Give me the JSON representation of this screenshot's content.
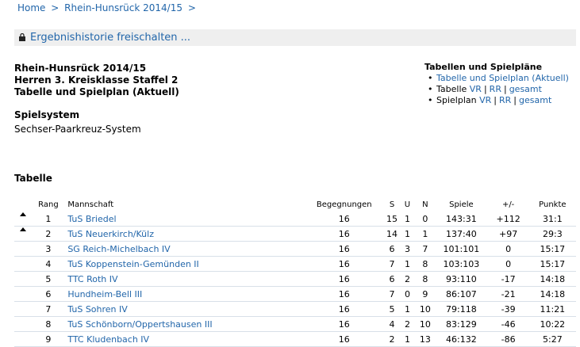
{
  "breadcrumb": {
    "home": "Home",
    "season": "Rhein-Hunsrück 2014/15",
    "sep": ">"
  },
  "unlock": {
    "label": "Ergebnishistorie freischalten ..."
  },
  "header": {
    "line1": "Rhein-Hunsrück 2014/15",
    "line2": "Herren 3. Kreisklasse Staffel 2",
    "line3": "Tabelle und Spielplan (Aktuell)"
  },
  "spielsystem": {
    "label": "Spielsystem",
    "value": "Sechser-Paarkreuz-System"
  },
  "sidebar": {
    "title": "Tabellen und Spielpläne",
    "item1": "Tabelle und Spielplan (Aktuell)",
    "tabelle_label": "Tabelle",
    "spielplan_label": "Spielplan",
    "vr": "VR",
    "rr": "RR",
    "gesamt": "gesamt",
    "pipe": "|"
  },
  "tabelle": {
    "heading": "Tabelle",
    "columns": {
      "rang": "Rang",
      "mannschaft": "Mannschaft",
      "begegnungen": "Begegnungen",
      "s": "S",
      "u": "U",
      "n": "N",
      "spiele": "Spiele",
      "diff": "+/-",
      "punkte": "Punkte"
    },
    "rows": [
      {
        "up": true,
        "rang": "1",
        "team": "TuS Briedel",
        "beg": "16",
        "s": "15",
        "u": "1",
        "n": "0",
        "spiele": "143:31",
        "diff": "+112",
        "punkte": "31:1"
      },
      {
        "up": true,
        "rang": "2",
        "team": "TuS Neuerkirch/Külz",
        "beg": "16",
        "s": "14",
        "u": "1",
        "n": "1",
        "spiele": "137:40",
        "diff": "+97",
        "punkte": "29:3"
      },
      {
        "up": false,
        "rang": "3",
        "team": "SG Reich-Michelbach IV",
        "beg": "16",
        "s": "6",
        "u": "3",
        "n": "7",
        "spiele": "101:101",
        "diff": "0",
        "punkte": "15:17"
      },
      {
        "up": false,
        "rang": "4",
        "team": "TuS Koppenstein-Gemünden II",
        "beg": "16",
        "s": "7",
        "u": "1",
        "n": "8",
        "spiele": "103:103",
        "diff": "0",
        "punkte": "15:17"
      },
      {
        "up": false,
        "rang": "5",
        "team": "TTC Roth IV",
        "beg": "16",
        "s": "6",
        "u": "2",
        "n": "8",
        "spiele": "93:110",
        "diff": "-17",
        "punkte": "14:18"
      },
      {
        "up": false,
        "rang": "6",
        "team": "Hundheim-Bell III",
        "beg": "16",
        "s": "7",
        "u": "0",
        "n": "9",
        "spiele": "86:107",
        "diff": "-21",
        "punkte": "14:18"
      },
      {
        "up": false,
        "rang": "7",
        "team": "TuS Sohren IV",
        "beg": "16",
        "s": "5",
        "u": "1",
        "n": "10",
        "spiele": "79:118",
        "diff": "-39",
        "punkte": "11:21"
      },
      {
        "up": false,
        "rang": "8",
        "team": "TuS Schönborn/Oppertshausen III",
        "beg": "16",
        "s": "4",
        "u": "2",
        "n": "10",
        "spiele": "83:129",
        "diff": "-46",
        "punkte": "10:22"
      },
      {
        "up": false,
        "rang": "9",
        "team": "TTC Kludenbach IV",
        "beg": "16",
        "s": "2",
        "u": "1",
        "n": "13",
        "spiele": "46:132",
        "diff": "-86",
        "punkte": "5:27"
      }
    ]
  }
}
